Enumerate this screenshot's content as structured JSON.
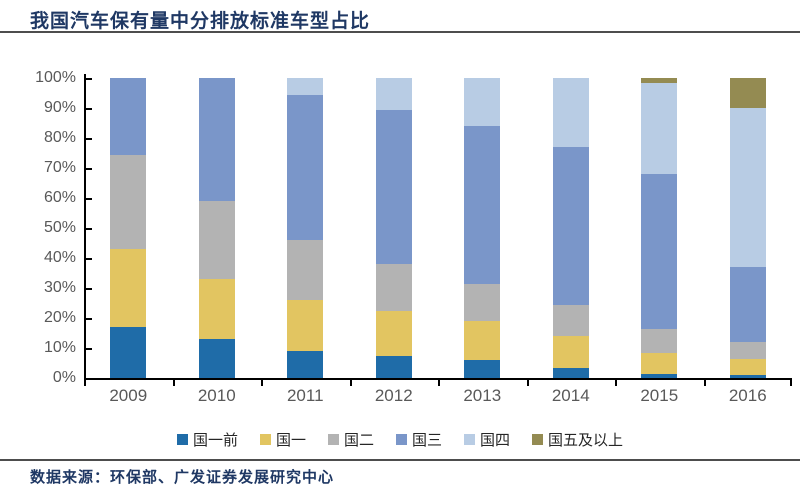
{
  "header": {
    "title": "我国汽车保有量中分排放标准车型占比"
  },
  "footer": {
    "source": "数据来源：环保部、广发证券发展研究中心"
  },
  "colors": {
    "title_text": "#1f3864",
    "rule_line": "#4d4d4d",
    "axis_line": "#000000",
    "tick_label": "#595959"
  },
  "chart_data": {
    "type": "bar",
    "stacked": true,
    "unit": "percent",
    "title": "我国汽车保有量中分排放标准车型占比",
    "xlabel": "",
    "ylabel": "",
    "ylim": [
      0,
      100
    ],
    "grid": false,
    "legend_position": "bottom",
    "yticks": [
      "0%",
      "10%",
      "20%",
      "30%",
      "40%",
      "50%",
      "60%",
      "70%",
      "80%",
      "90%",
      "100%"
    ],
    "categories": [
      "2009",
      "2010",
      "2011",
      "2012",
      "2013",
      "2014",
      "2015",
      "2016"
    ],
    "series": [
      {
        "name": "国一前",
        "color": "#1f6ca8",
        "values": [
          17,
          13,
          9,
          7.5,
          6,
          3.5,
          1.5,
          1
        ]
      },
      {
        "name": "国一",
        "color": "#e2c561",
        "values": [
          26,
          20,
          17,
          15,
          13,
          10.5,
          7,
          5.5
        ]
      },
      {
        "name": "国二",
        "color": "#b3b3b3",
        "values": [
          31.5,
          26,
          20,
          15.5,
          12.5,
          10.5,
          8,
          5.5
        ]
      },
      {
        "name": "国三",
        "color": "#7a96c9",
        "values": [
          25.5,
          41,
          48.5,
          51.5,
          52.5,
          52.5,
          51.5,
          25
        ]
      },
      {
        "name": "国四",
        "color": "#b8cce4",
        "values": [
          0,
          0,
          5.5,
          10.5,
          16,
          23,
          30.5,
          53
        ]
      },
      {
        "name": "国五及以上",
        "color": "#948b52",
        "values": [
          0,
          0,
          0,
          0,
          0,
          0,
          1.5,
          10
        ]
      }
    ]
  }
}
